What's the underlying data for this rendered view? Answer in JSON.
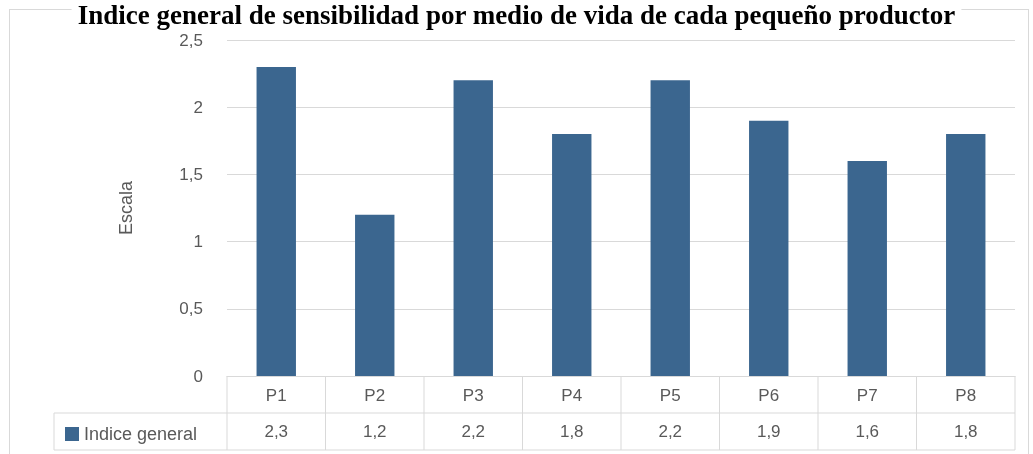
{
  "chart_data": {
    "type": "bar",
    "title": "Indice general de sensibilidad por medio de vida de cada pequeño productor",
    "ylabel": "Escala",
    "categories": [
      "P1",
      "P2",
      "P3",
      "P4",
      "P5",
      "P6",
      "P7",
      "P8"
    ],
    "series": [
      {
        "name": "Indice general",
        "color": "#3b668f",
        "values": [
          2.3,
          1.2,
          2.2,
          1.8,
          2.2,
          1.9,
          1.6,
          1.8
        ],
        "value_labels": [
          "2,3",
          "1,2",
          "2,2",
          "1,8",
          "2,2",
          "1,9",
          "1,6",
          "1,8"
        ]
      }
    ],
    "ylim": [
      0,
      2.5
    ],
    "yticks": [
      0,
      {
        "value": 0.5,
        "label": "0,5"
      },
      1,
      {
        "value": 1.5,
        "label": "1,5"
      },
      2,
      {
        "value": 2.5,
        "label": "2,5"
      }
    ],
    "grid": "y",
    "legend": "bottom left"
  }
}
